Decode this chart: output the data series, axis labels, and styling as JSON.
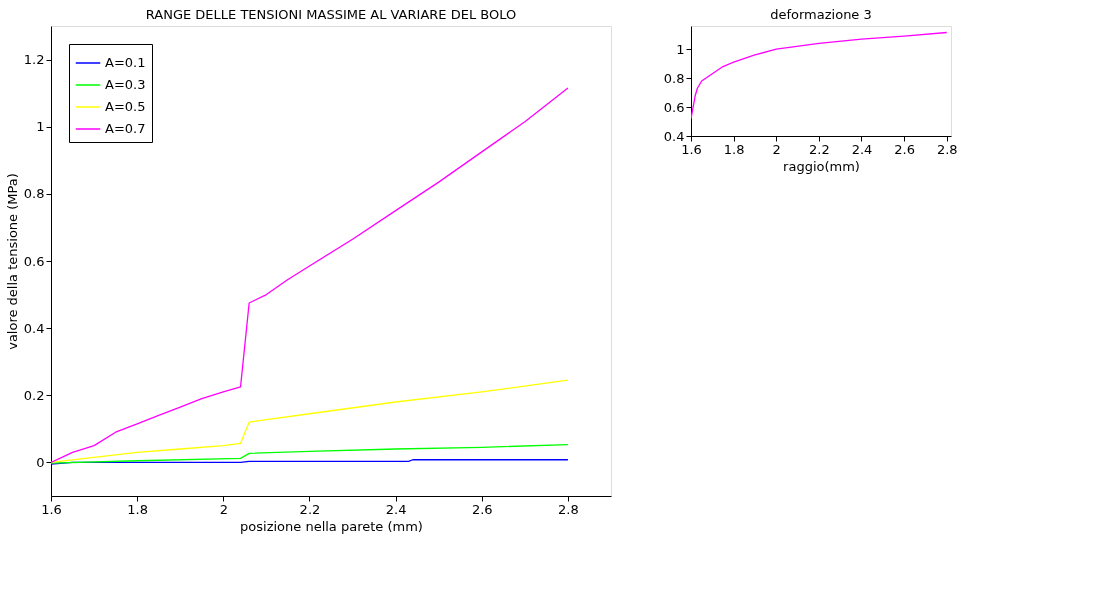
{
  "chart_data": [
    {
      "type": "line",
      "title": "RANGE DELLE TENSIONI MASSIME AL VARIARE DEL BOLO",
      "xlabel": "posizione nella parete (mm)",
      "ylabel": "valore della tensione (MPa)",
      "xlim": [
        1.6,
        2.9
      ],
      "ylim": [
        -0.1,
        1.3
      ],
      "xticks": [
        1.6,
        1.8,
        2,
        2.2,
        2.4,
        2.6,
        2.8
      ],
      "yticks": [
        0,
        0.2,
        0.4,
        0.6,
        0.8,
        1,
        1.2
      ],
      "grid": false,
      "legend": "top left",
      "series": [
        {
          "name": "A=0.1",
          "color": "#0000ff",
          "x": [
            1.6,
            1.65,
            2.04,
            2.06,
            2.43,
            2.44,
            2.8
          ],
          "values": [
            -0.005,
            0,
            0,
            0.003,
            0.003,
            0.008,
            0.008
          ]
        },
        {
          "name": "A=0.3",
          "color": "#00ff00",
          "x": [
            1.6,
            1.8,
            2.04,
            2.06,
            2.2,
            2.4,
            2.6,
            2.8
          ],
          "values": [
            -0.002,
            0.005,
            0.012,
            0.027,
            0.033,
            0.04,
            0.045,
            0.053
          ]
        },
        {
          "name": "A=0.5",
          "color": "#ffff00",
          "x": [
            1.6,
            1.7,
            1.8,
            1.9,
            2.0,
            2.04,
            2.06,
            2.2,
            2.4,
            2.6,
            2.8
          ],
          "values": [
            0,
            0.015,
            0.03,
            0.04,
            0.05,
            0.057,
            0.12,
            0.145,
            0.18,
            0.21,
            0.245
          ]
        },
        {
          "name": "A=0.7",
          "color": "#ff00ff",
          "x": [
            1.6,
            1.65,
            1.7,
            1.75,
            1.8,
            1.85,
            1.9,
            1.95,
            2.0,
            2.04,
            2.06,
            2.1,
            2.15,
            2.2,
            2.3,
            2.4,
            2.5,
            2.6,
            2.7,
            2.8
          ],
          "values": [
            0,
            0.03,
            0.05,
            0.09,
            0.115,
            0.14,
            0.165,
            0.19,
            0.21,
            0.225,
            0.475,
            0.5,
            0.545,
            0.585,
            0.665,
            0.75,
            0.835,
            0.925,
            1.015,
            1.115
          ]
        }
      ]
    },
    {
      "type": "line",
      "title": "deformazione 3",
      "xlabel": "raggio(mm)",
      "xlim": [
        1.6,
        2.82
      ],
      "ylim": [
        0.4,
        1.16
      ],
      "xticks": [
        1.6,
        1.8,
        2,
        2.2,
        2.4,
        2.6,
        2.8
      ],
      "yticks": [
        0.4,
        0.6,
        0.8,
        1
      ],
      "grid": false,
      "legend": false,
      "series": [
        {
          "color": "#ff00ff",
          "x": [
            1.6,
            1.61,
            1.62,
            1.63,
            1.65,
            1.7,
            1.75,
            1.8,
            1.9,
            2.0,
            2.2,
            2.4,
            2.6,
            2.8
          ],
          "values": [
            0.52,
            0.6,
            0.68,
            0.73,
            0.78,
            0.83,
            0.88,
            0.91,
            0.96,
            1.0,
            1.04,
            1.07,
            1.09,
            1.115
          ]
        }
      ]
    }
  ]
}
